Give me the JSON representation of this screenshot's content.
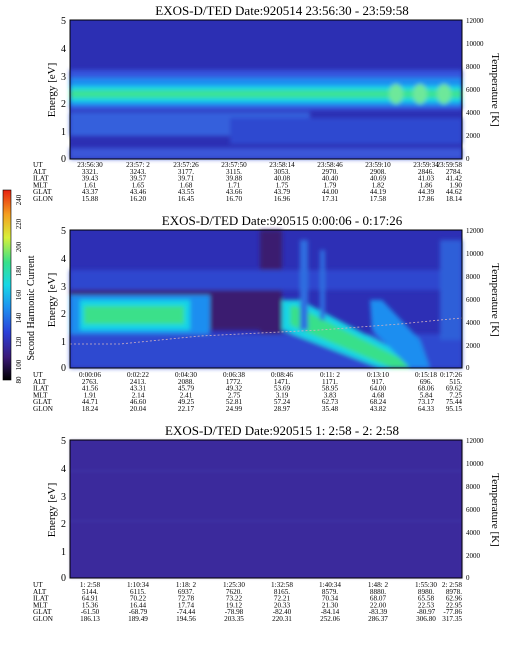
{
  "chart_data": [
    {
      "type": "heatmap",
      "title": "EXOS-D/TED   Date:920514  23:56:30 - 23:59:58",
      "ylabel": "Energy [eV]",
      "ylabel_right": "Temperature [K]",
      "ylim": [
        0,
        5
      ],
      "ylim_right": [
        0,
        12000
      ],
      "y_ticks": [
        "0",
        "1",
        "2",
        "3",
        "4",
        "5"
      ],
      "y_ticks_right": [
        "0",
        "2000",
        "4000",
        "6000",
        "8000",
        "10000",
        "12000"
      ],
      "table": {
        "row_labels": [
          "UT",
          "ALT",
          "ILAT",
          "MLT",
          "GLAT",
          "GLON"
        ],
        "columns": [
          [
            "23:56:30",
            "3321.",
            "39.43",
            "1.61",
            "43.37",
            "15.88"
          ],
          [
            "23:57: 2",
            "3243.",
            "39.57",
            "1.65",
            "43.46",
            "16.20"
          ],
          [
            "23:57:26",
            "3177.",
            "39.71",
            "1.68",
            "43.55",
            "16.45"
          ],
          [
            "23:57:50",
            "3115.",
            "39.88",
            "1.71",
            "43.66",
            "16.70"
          ],
          [
            "23:58:14",
            "3053.",
            "40.08",
            "1.75",
            "43.79",
            "16.96"
          ],
          [
            "23:58:46",
            "2970.",
            "40.40",
            "1.79",
            "44.00",
            "17.31"
          ],
          [
            "23:59:10",
            "2908.",
            "40.69",
            "1.82",
            "44.19",
            "17.58"
          ],
          [
            "23:59:34",
            "2846.",
            "41.03",
            "1.86",
            "44.39",
            "17.86"
          ],
          [
            "23:59:58",
            "2784.",
            "41.42",
            "1.90",
            "44.62",
            "18.14"
          ]
        ]
      }
    },
    {
      "type": "heatmap",
      "title": "EXOS-D/TED   Date:920515   0:00:06 - 0:17:26",
      "ylabel": "Energy [eV]",
      "ylabel_right": "Temperature [K]",
      "ylim": [
        0,
        5
      ],
      "ylim_right": [
        0,
        12000
      ],
      "y_ticks": [
        "0",
        "1",
        "2",
        "3",
        "4",
        "5"
      ],
      "y_ticks_right": [
        "0",
        "2000",
        "4000",
        "6000",
        "8000",
        "10000",
        "12000"
      ],
      "colorbar": {
        "label": "Second Harmonic Current",
        "ticks": [
          "80",
          "100",
          "120",
          "140",
          "160",
          "180",
          "200",
          "220",
          "240"
        ]
      },
      "table": {
        "row_labels": [
          "UT",
          "ALT",
          "ILAT",
          "MLT",
          "GLAT",
          "GLON"
        ],
        "columns": [
          [
            "0:00:06",
            "2763.",
            "41.56",
            "1.91",
            "44.71",
            "18.24"
          ],
          [
            "0:02:22",
            "2413.",
            "43.31",
            "2.14",
            "46.60",
            "20.04"
          ],
          [
            "0:04:30",
            "2088.",
            "45.79",
            "2.41",
            "49.25",
            "22.17"
          ],
          [
            "0:06:38",
            "1772.",
            "49.32",
            "2.75",
            "52.81",
            "24.99"
          ],
          [
            "0:08:46",
            "1471.",
            "53.69",
            "3.19",
            "57.24",
            "28.97"
          ],
          [
            "0:11: 2",
            "1171.",
            "58.95",
            "3.83",
            "62.73",
            "35.48"
          ],
          [
            "0:13:10",
            "917.",
            "64.00",
            "4.68",
            "68.24",
            "43.82"
          ],
          [
            "0:15:18",
            "696.",
            "68.06",
            "5.84",
            "73.17",
            "64.33"
          ],
          [
            "0:17:26",
            "515.",
            "69.62",
            "7.25",
            "75.44",
            "95.15"
          ]
        ]
      }
    },
    {
      "type": "heatmap",
      "title": "EXOS-D/TED   Date:920515   1: 2:58 - 2: 2:58",
      "ylabel": "Energy [eV]",
      "ylabel_right": "Temperature [K]",
      "ylim": [
        0,
        5
      ],
      "ylim_right": [
        0,
        12000
      ],
      "y_ticks": [
        "0",
        "1",
        "2",
        "3",
        "4",
        "5"
      ],
      "y_ticks_right": [
        "0",
        "2000",
        "4000",
        "6000",
        "8000",
        "10000",
        "12000"
      ],
      "table": {
        "row_labels": [
          "UT",
          "ALT",
          "ILAT",
          "MLT",
          "GLAT",
          "GLON"
        ],
        "columns": [
          [
            "1: 2:58",
            "5144.",
            "64.91",
            "15.36",
            "-61.50",
            "186.13"
          ],
          [
            "1:10:34",
            "6115.",
            "70.22",
            "16.44",
            "-68.79",
            "189.49"
          ],
          [
            "1:18: 2",
            "6937.",
            "72.78",
            "17.74",
            "-74.44",
            "194.56"
          ],
          [
            "1:25:30",
            "7620.",
            "73.22",
            "19.12",
            "-78.98",
            "203.35"
          ],
          [
            "1:32:58",
            "8165.",
            "72.21",
            "20.33",
            "-82.40",
            "220.31"
          ],
          [
            "1:40:34",
            "8579.",
            "70.34",
            "21.30",
            "-84.14",
            "252.06"
          ],
          [
            "1:48: 2",
            "8880.",
            "68.07",
            "22.00",
            "-83.39",
            "286.37"
          ],
          [
            "1:55:30",
            "8980.",
            "65.58",
            "22.53",
            "-80.97",
            "306.80"
          ],
          [
            "2: 2:58",
            "8978.",
            "62.96",
            "22.95",
            "-77.86",
            "317.35"
          ]
        ]
      }
    }
  ],
  "colors": {
    "background": "#2d2fb5",
    "low": "#3b4fd8",
    "mid": "#1f8cf0",
    "high": "#16d9e8",
    "peak": "#38e08a",
    "dark": "#3a1a6e",
    "panel3": "#3c2a9e"
  }
}
